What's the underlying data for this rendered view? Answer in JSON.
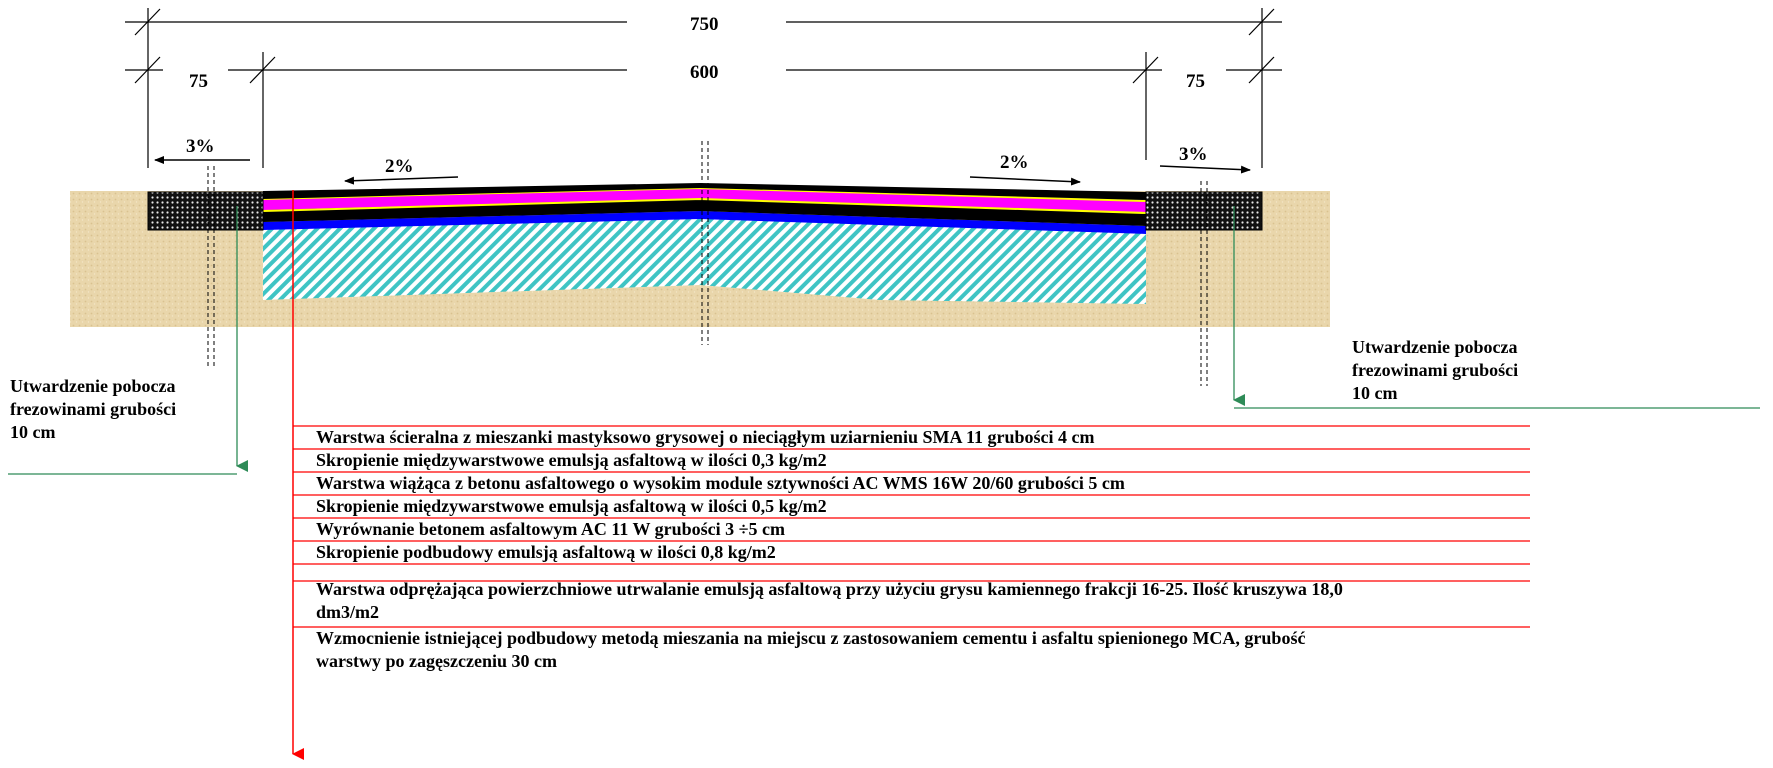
{
  "dimensions": {
    "total": "750",
    "carriageway": "600",
    "shoulder_left": "75",
    "shoulder_right": "75"
  },
  "slopes": {
    "shoulder_left": "3%",
    "lane_left": "2%",
    "lane_right": "2%",
    "shoulder_right": "3%"
  },
  "shoulder_note": {
    "left": [
      "Utwardzenie pobocza",
      "frezowinami grubości",
      "10 cm"
    ],
    "right": [
      "Utwardzenie pobocza",
      "frezowinami grubości",
      "10 cm"
    ]
  },
  "layers": [
    {
      "text": "Warstwa ścieralna z mieszanki mastyksowo grysowej o nieciągłym uziarnieniu SMA 11 grubości 4 cm"
    },
    {
      "text": "Skropienie międzywarstwowe emulsją asfaltową w ilości 0,3 kg/m2"
    },
    {
      "text": "Warstwa wiążąca z betonu asfaltowego o wysokim module sztywności AC WMS 16W 20/60  grubości 5 cm"
    },
    {
      "text": "Skropienie międzywarstwowe emulsją asfaltową w ilości 0,5 kg/m2"
    },
    {
      "text": "Wyrównanie betonem asfaltowym AC 11 W grubości 3 ÷5 cm"
    },
    {
      "text": "Skropienie podbudowy emulsją asfaltową w ilości 0,8 kg/m2"
    },
    {
      "text": "Warstwa odprężająca powierzchniowe utrwalanie emulsją asfaltową przy użyciu grysu kamiennego frakcji 16-25. Ilość kruszywa 18,0 dm3/m2"
    },
    {
      "text": "Wzmocnienie istniejącej podbudowy metodą mieszania na miejscu z zastosowaniem cementu i asfaltu spienionego MCA, grubość warstwy po zagęszczeniu 30 cm"
    }
  ],
  "colors": {
    "soil": "#e6d3a8",
    "wearing_course": "#000000",
    "binder_course": "#ff00ff",
    "tack_coat": "#ffff00",
    "levelling": "#0000ff",
    "base_hatch": "#40c8c8",
    "shoulder": "#1a1a1a",
    "leader_red": "#ff0000",
    "leader_green": "#2e8b57"
  }
}
